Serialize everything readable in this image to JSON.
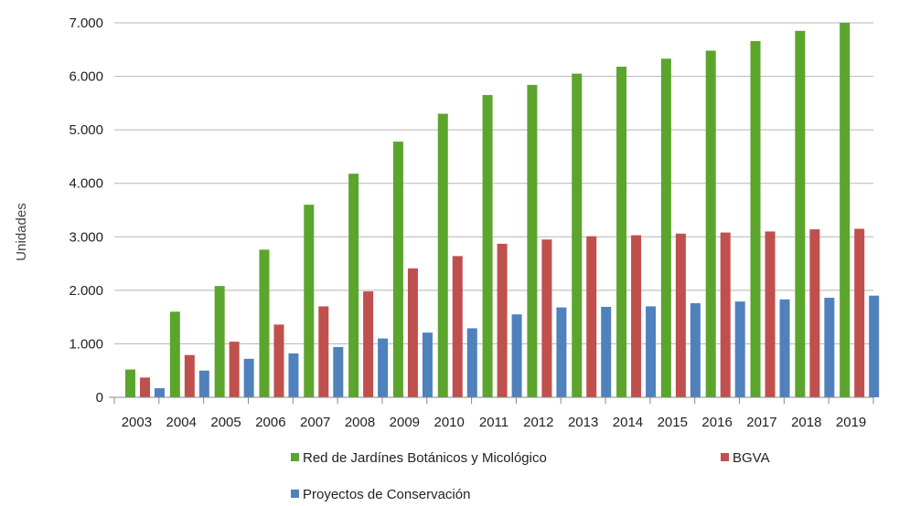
{
  "chart_data": {
    "type": "bar",
    "title": "",
    "xlabel": "",
    "ylabel": "Unidades",
    "ylim": [
      0,
      7000
    ],
    "yticks": [
      0,
      1000,
      2000,
      3000,
      4000,
      5000,
      6000,
      7000
    ],
    "ytick_labels": [
      "0",
      "1.000",
      "2.000",
      "3.000",
      "4.000",
      "5.000",
      "6.000",
      "7.000"
    ],
    "grid": "horizontal",
    "legend_position": "bottom",
    "categories": [
      "2003",
      "2004",
      "2005",
      "2006",
      "2007",
      "2008",
      "2009",
      "2010",
      "2011",
      "2012",
      "2013",
      "2014",
      "2015",
      "2016",
      "2017",
      "2018",
      "2019"
    ],
    "series": [
      {
        "name": "Red de Jardínes Botánicos y Micológico",
        "color": "#5ba52d",
        "values": [
          520,
          1600,
          2080,
          2760,
          3600,
          4180,
          4780,
          5300,
          5650,
          5840,
          6050,
          6180,
          6330,
          6480,
          6660,
          6850,
          7000
        ]
      },
      {
        "name": "BGVA",
        "color": "#c0504d",
        "values": [
          370,
          790,
          1040,
          1360,
          1700,
          1980,
          2410,
          2640,
          2870,
          2950,
          3010,
          3030,
          3060,
          3080,
          3100,
          3140,
          3150
        ]
      },
      {
        "name": "Proyectos de Conservación",
        "color": "#4f81bd",
        "values": [
          170,
          500,
          720,
          820,
          940,
          1100,
          1210,
          1290,
          1550,
          1680,
          1690,
          1700,
          1760,
          1790,
          1830,
          1860,
          1900
        ]
      }
    ]
  }
}
